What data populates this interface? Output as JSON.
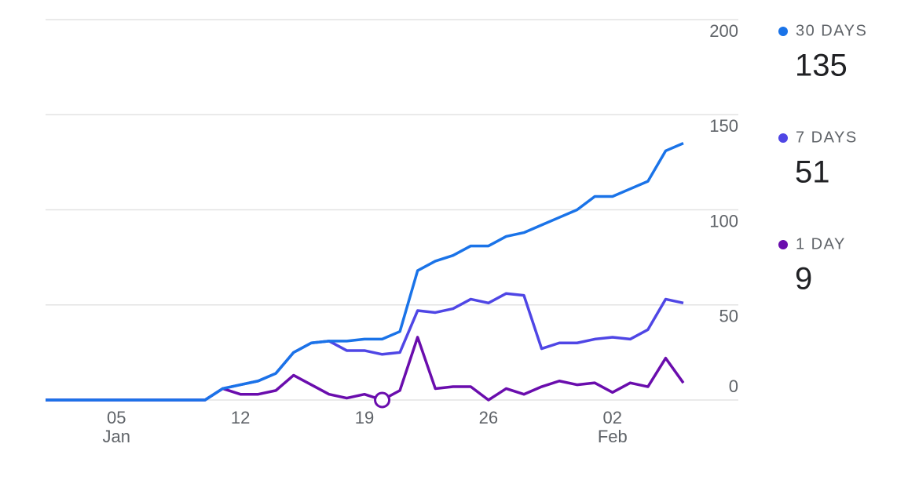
{
  "chart_data": {
    "type": "line",
    "categories": [
      null,
      null,
      null,
      null,
      "05",
      null,
      null,
      null,
      null,
      null,
      null,
      "12",
      null,
      null,
      null,
      null,
      null,
      null,
      "19",
      null,
      null,
      null,
      null,
      null,
      null,
      "26",
      null,
      null,
      null,
      null,
      null,
      null,
      "02",
      null,
      null,
      null,
      null
    ],
    "category_sublabels": [
      null,
      null,
      null,
      null,
      "Jan",
      null,
      null,
      null,
      null,
      null,
      null,
      null,
      null,
      null,
      null,
      null,
      null,
      null,
      null,
      null,
      null,
      null,
      null,
      null,
      null,
      null,
      null,
      null,
      null,
      null,
      null,
      null,
      "Feb",
      null,
      null,
      null,
      null
    ],
    "series": [
      {
        "name": "30 DAYS",
        "color": "#1a73e8",
        "values": [
          0,
          0,
          0,
          0,
          0,
          0,
          0,
          0,
          0,
          0,
          6,
          8,
          10,
          14,
          25,
          30,
          31,
          31,
          32,
          32,
          36,
          68,
          73,
          76,
          81,
          81,
          86,
          88,
          92,
          96,
          100,
          107,
          107,
          111,
          115,
          131,
          135
        ]
      },
      {
        "name": "7 DAYS",
        "color": "#4f46e5",
        "values": [
          0,
          0,
          0,
          0,
          0,
          0,
          0,
          0,
          0,
          0,
          6,
          8,
          10,
          14,
          25,
          30,
          31,
          26,
          26,
          24,
          25,
          47,
          46,
          48,
          53,
          51,
          56,
          55,
          27,
          30,
          30,
          32,
          33,
          32,
          37,
          53,
          51
        ]
      },
      {
        "name": "1 DAY",
        "color": "#6a0dad",
        "values": [
          0,
          0,
          0,
          0,
          0,
          0,
          0,
          0,
          0,
          0,
          6,
          3,
          3,
          5,
          13,
          8,
          3,
          1,
          3,
          0,
          5,
          33,
          6,
          7,
          7,
          0,
          6,
          3,
          7,
          10,
          8,
          9,
          4,
          9,
          7,
          22,
          9
        ]
      }
    ],
    "ylim": [
      0,
      200
    ],
    "yticks": [
      0,
      50,
      100,
      150,
      200
    ],
    "grid": true,
    "highlight": {
      "series": 2,
      "index": 19
    }
  }
}
